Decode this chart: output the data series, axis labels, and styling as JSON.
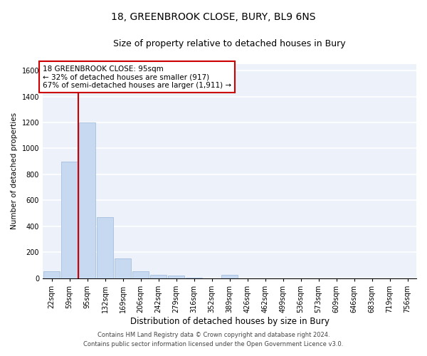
{
  "title1": "18, GREENBROOK CLOSE, BURY, BL9 6NS",
  "title2": "Size of property relative to detached houses in Bury",
  "xlabel": "Distribution of detached houses by size in Bury",
  "ylabel": "Number of detached properties",
  "footer1": "Contains HM Land Registry data © Crown copyright and database right 2024.",
  "footer2": "Contains public sector information licensed under the Open Government Licence v3.0.",
  "annotation_line1": "18 GREENBROOK CLOSE: 95sqm",
  "annotation_line2": "← 32% of detached houses are smaller (917)",
  "annotation_line3": "67% of semi-detached houses are larger (1,911) →",
  "property_size_idx": 1.5,
  "bar_color": "#c6d9f0",
  "bar_edgecolor": "#9ab8dc",
  "redline_color": "#cc0000",
  "annotation_box_edgecolor": "#cc0000",
  "background_color": "#edf2fa",
  "categories": [
    "22sqm",
    "59sqm",
    "95sqm",
    "132sqm",
    "169sqm",
    "206sqm",
    "242sqm",
    "279sqm",
    "316sqm",
    "352sqm",
    "389sqm",
    "426sqm",
    "462sqm",
    "499sqm",
    "536sqm",
    "573sqm",
    "609sqm",
    "646sqm",
    "683sqm",
    "719sqm",
    "756sqm"
  ],
  "values": [
    50,
    900,
    1200,
    470,
    150,
    55,
    25,
    20,
    5,
    0,
    25,
    0,
    0,
    0,
    0,
    0,
    0,
    0,
    0,
    0,
    0
  ],
  "ylim": [
    0,
    1650
  ],
  "yticks": [
    0,
    200,
    400,
    600,
    800,
    1000,
    1200,
    1400,
    1600
  ],
  "grid_color": "#ffffff",
  "title1_fontsize": 10,
  "title2_fontsize": 9,
  "xlabel_fontsize": 8.5,
  "ylabel_fontsize": 7.5,
  "tick_fontsize": 7,
  "annotation_fontsize": 7.5,
  "footer_fontsize": 6
}
